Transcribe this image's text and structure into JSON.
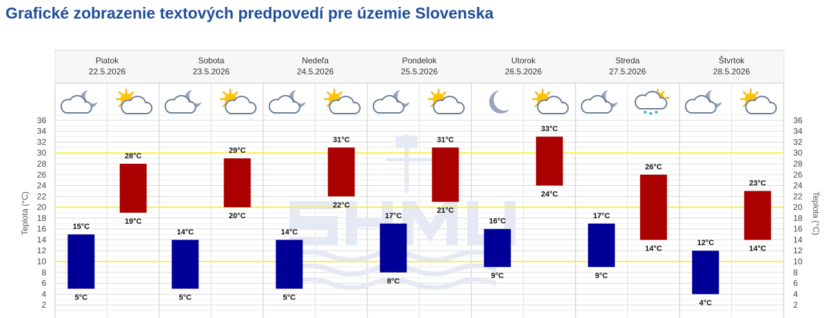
{
  "title": "Grafické zobrazenie textových predpovedí pre územie Slovenska",
  "colors": {
    "title": "#1f4e9a",
    "min_bar": "#000099",
    "max_bar": "#aa0000",
    "highlight_line": "#ffee44"
  },
  "chart_data": {
    "type": "bar",
    "title": "",
    "ylabel": "Teplota (°C)",
    "ylim": [
      1,
      37
    ],
    "yticks": [
      2,
      4,
      6,
      8,
      10,
      12,
      14,
      16,
      18,
      20,
      22,
      24,
      26,
      28,
      30,
      32,
      34,
      36
    ],
    "highlight_lines": [
      10,
      20,
      30
    ],
    "grid": true,
    "days": [
      {
        "name": "Piatok",
        "date": "22.5.2026",
        "icon_night": "cloud-moon-icon",
        "icon_day": "sun-cloud-icon",
        "min": {
          "low": 5,
          "high": 15,
          "low_label": "5°C",
          "high_label": "15°C"
        },
        "max": {
          "low": 19,
          "high": 28,
          "low_label": "19°C",
          "high_label": "28°C"
        }
      },
      {
        "name": "Sobota",
        "date": "23.5.2026",
        "icon_night": "cloud-moon-icon",
        "icon_day": "sun-cloud-icon",
        "min": {
          "low": 5,
          "high": 14,
          "low_label": "5°C",
          "high_label": "14°C"
        },
        "max": {
          "low": 20,
          "high": 29,
          "low_label": "20°C",
          "high_label": "29°C"
        }
      },
      {
        "name": "Nedeľa",
        "date": "24.5.2026",
        "icon_night": "cloud-moon-icon",
        "icon_day": "sun-cloud-icon",
        "min": {
          "low": 5,
          "high": 14,
          "low_label": "5°C",
          "high_label": "14°C"
        },
        "max": {
          "low": 22,
          "high": 31,
          "low_label": "22°C",
          "high_label": "31°C"
        }
      },
      {
        "name": "Pondelok",
        "date": "25.5.2026",
        "icon_night": "cloud-moon-icon",
        "icon_day": "sun-cloud-icon",
        "min": {
          "low": 8,
          "high": 17,
          "low_label": "8°C",
          "high_label": "17°C"
        },
        "max": {
          "low": 21,
          "high": 31,
          "low_label": "21°C",
          "high_label": "31°C"
        }
      },
      {
        "name": "Utorok",
        "date": "26.5.2026",
        "icon_night": "moon-icon",
        "icon_day": "sun-cloud-icon",
        "min": {
          "low": 9,
          "high": 16,
          "low_label": "9°C",
          "high_label": "16°C"
        },
        "max": {
          "low": 24,
          "high": 33,
          "low_label": "24°C",
          "high_label": "33°C"
        }
      },
      {
        "name": "Streda",
        "date": "27.5.2026",
        "icon_night": "cloud-moon-icon",
        "icon_day": "sun-cloud-rain-icon",
        "min": {
          "low": 9,
          "high": 17,
          "low_label": "9°C",
          "high_label": "17°C"
        },
        "max": {
          "low": 14,
          "high": 26,
          "low_label": "14°C",
          "high_label": "26°C"
        }
      },
      {
        "name": "Štvrtok",
        "date": "28.5.2026",
        "icon_night": "cloud-moon-icon",
        "icon_day": "sun-cloud-icon",
        "min": {
          "low": 4,
          "high": 12,
          "low_label": "4°C",
          "high_label": "12°C"
        },
        "max": {
          "low": 14,
          "high": 23,
          "low_label": "14°C",
          "high_label": "23°C"
        }
      }
    ]
  }
}
